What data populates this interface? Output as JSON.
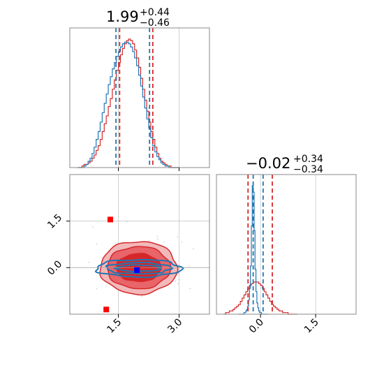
{
  "chart_data": [
    {
      "id": "hist-param-1",
      "type": "histogram",
      "title": {
        "value": "1.99",
        "plus": "+0.44",
        "minus": "−0.46"
      },
      "xlim": [
        0.3,
        3.75
      ],
      "quantiles": {
        "blue": [
          1.44,
          2.27
        ],
        "red": [
          1.53,
          2.35
        ]
      },
      "series": [
        {
          "name": "red",
          "color": "#d62728",
          "edges_start": 0.5,
          "bin_width": 0.05,
          "counts": [
            0,
            0,
            1,
            2,
            2,
            3,
            4,
            6,
            8,
            11,
            14,
            18,
            23,
            28,
            33,
            39,
            44,
            50,
            56,
            62,
            67,
            72,
            76,
            79,
            81,
            82,
            81,
            79,
            75,
            70,
            64,
            57,
            50,
            43,
            36,
            29,
            23,
            18,
            13,
            9,
            6,
            4,
            3,
            2,
            1,
            1,
            0,
            0,
            0,
            0
          ]
        },
        {
          "name": "blue",
          "color": "#1f77b4",
          "edges_start": 0.5,
          "bin_width": 0.05,
          "counts": [
            0,
            0,
            0,
            1,
            2,
            4,
            6,
            9,
            13,
            18,
            23,
            29,
            35,
            41,
            47,
            53,
            58,
            63,
            67,
            71,
            74,
            77,
            79,
            80,
            80,
            79,
            77,
            74,
            70,
            65,
            59,
            52,
            45,
            38,
            31,
            25,
            19,
            14,
            10,
            7,
            5,
            3,
            2,
            1,
            1,
            0,
            0,
            0,
            0,
            0
          ]
        }
      ]
    },
    {
      "id": "hist-param-2",
      "type": "histogram",
      "title": {
        "value": "−0.02",
        "plus": "+0.34",
        "minus": "−0.34"
      },
      "xlim": [
        -1.2,
        2.6
      ],
      "x_ticks": [
        0.0,
        1.5
      ],
      "x_tick_labels": [
        "0.0",
        "1.5"
      ],
      "quantiles": {
        "blue": [
          -0.2,
          0.07
        ],
        "red": [
          -0.34,
          0.32
        ]
      },
      "series": [
        {
          "name": "red",
          "color": "#d62728",
          "edges_start": -1.0,
          "bin_width": 0.05,
          "counts": [
            0,
            1,
            1,
            2,
            2,
            3,
            4,
            5,
            6,
            8,
            10,
            12,
            14,
            16,
            18,
            19,
            20,
            20,
            20,
            19,
            18,
            16,
            14,
            12,
            10,
            8,
            6,
            5,
            4,
            3,
            2,
            2,
            1,
            1,
            1,
            0,
            0,
            0,
            0,
            0
          ]
        },
        {
          "name": "blue",
          "color": "#1f77b4",
          "edges_start": -0.6,
          "bin_width": 0.025,
          "counts": [
            0,
            0,
            0,
            0,
            0,
            0,
            1,
            1,
            2,
            3,
            5,
            9,
            16,
            30,
            55,
            80,
            76,
            52,
            28,
            14,
            7,
            4,
            2,
            1,
            1,
            0,
            0,
            0,
            0,
            0,
            0,
            0
          ]
        }
      ]
    },
    {
      "id": "scatter-2d",
      "type": "scatter",
      "xlim": [
        0.3,
        3.75
      ],
      "ylim": [
        -1.5,
        3.0
      ],
      "x_ticks": [
        1.5,
        3.0
      ],
      "x_tick_labels": [
        "1.5",
        "3.0"
      ],
      "y_ticks": [
        0.0,
        1.5
      ],
      "y_tick_labels": [
        "0.0",
        "1.5"
      ],
      "reference_lines": {
        "x": 2.0,
        "y": 0.0
      },
      "red_contours": [
        {
          "center": [
            2.0,
            0.0
          ],
          "rx": 0.95,
          "ry": 0.85
        },
        {
          "center": [
            2.0,
            0.0
          ],
          "rx": 0.78,
          "ry": 0.68
        },
        {
          "center": [
            2.0,
            0.0
          ],
          "rx": 0.55,
          "ry": 0.45
        }
      ],
      "blue_contours": [
        {
          "center": [
            2.0,
            -0.02
          ],
          "rx": 1.05,
          "ry": 0.28
        },
        {
          "center": [
            2.0,
            -0.02
          ],
          "rx": 0.8,
          "ry": 0.18
        },
        {
          "center": [
            2.0,
            -0.02
          ],
          "rx": 0.55,
          "ry": 0.1
        }
      ],
      "markers": [
        {
          "name": "red-marker-top",
          "x": 1.3,
          "y": 1.55,
          "color": "#ff0000"
        },
        {
          "name": "red-marker-bottom",
          "x": 1.2,
          "y": -1.35,
          "color": "#ff0000"
        },
        {
          "name": "blue-marker",
          "x": 1.96,
          "y": -0.08,
          "color": "#0000ff"
        }
      ]
    }
  ]
}
